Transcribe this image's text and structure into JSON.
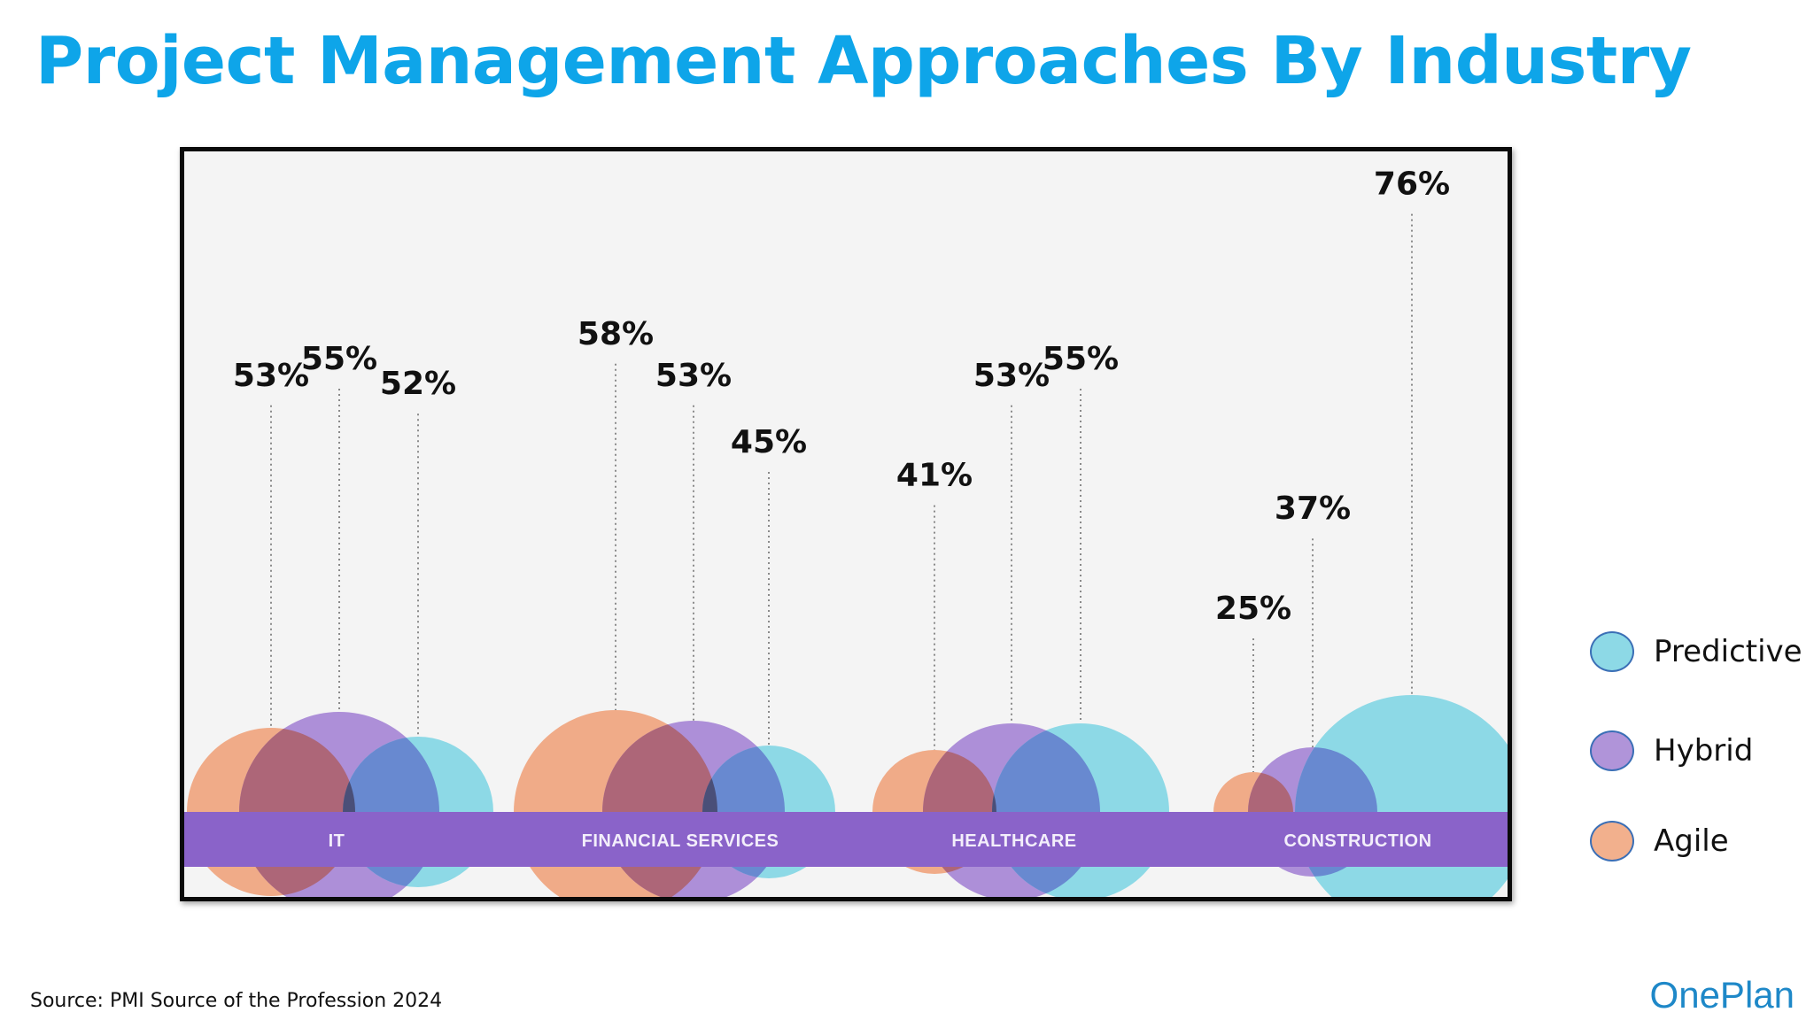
{
  "title": "Project Management Approaches By Industry",
  "source": "Source: PMI Source of the Profession 2024",
  "logo": "OnePlan",
  "legend": {
    "items": [
      {
        "label": "Predictive",
        "color": "#8dd9e6"
      },
      {
        "label": "Hybrid",
        "color": "#b094d9"
      },
      {
        "label": "Agile",
        "color": "#f2b08d"
      }
    ]
  },
  "colors": {
    "band": "#8a63c9",
    "band_text": "#f3eefb",
    "agile": "#f0ab88",
    "hybrid": "#ad8fd8",
    "predictive": "#8dd9e6",
    "agile_hybrid_overlap": "#ad6678",
    "hybrid_predictive_overlap": "#6889d0",
    "label": "#111111"
  },
  "chart_data": {
    "type": "bubble-semicircle",
    "categories": [
      "IT",
      "FINANCIAL SERVICES",
      "HEALTHCARE",
      "CONSTRUCTION"
    ],
    "series": [
      {
        "name": "Agile",
        "values": [
          53,
          58,
          41,
          25
        ]
      },
      {
        "name": "Hybrid",
        "values": [
          55,
          53,
          53,
          37
        ]
      },
      {
        "name": "Predictive",
        "values": [
          52,
          45,
          55,
          76
        ]
      }
    ],
    "value_labels": [
      [
        "53%",
        "55%",
        "52%"
      ],
      [
        "58%",
        "53%",
        "45%"
      ],
      [
        "41%",
        "53%",
        "55%"
      ],
      [
        "25%",
        "37%",
        "76%"
      ]
    ],
    "legend_position": "right"
  }
}
